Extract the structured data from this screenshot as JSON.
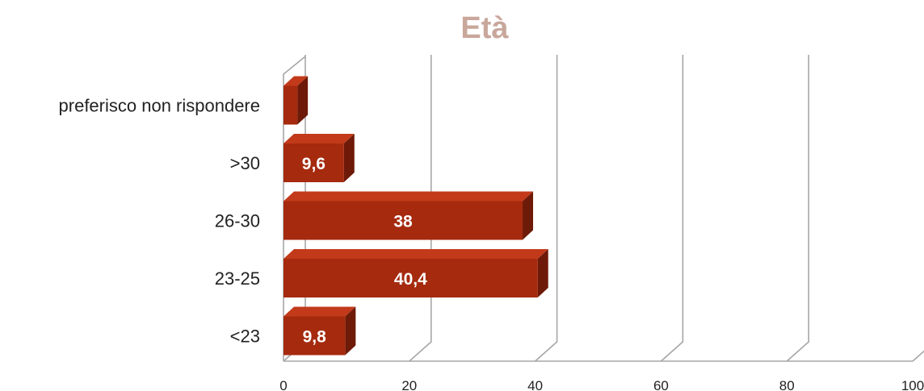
{
  "chart_data": {
    "type": "bar",
    "orientation": "horizontal",
    "title": "Età",
    "categories": [
      "preferisco non rispondere",
      ">30",
      "26-30",
      "23-25",
      "<23"
    ],
    "series": [
      {
        "values": [
          2.2,
          9.6,
          38,
          40.4,
          9.8
        ]
      }
    ],
    "data_labels": [
      "",
      "9,6",
      "38",
      "40,4",
      "9,8"
    ],
    "xlim": [
      0,
      100
    ],
    "x_ticks": [
      "0",
      "20",
      "40",
      "60",
      "80",
      "100"
    ],
    "grid": true,
    "legend": "none",
    "colors": {
      "bar_front": "#a52a0e",
      "bar_top": "#c23a1a",
      "bar_side": "#6e1a08",
      "grid": "#a6a6a6",
      "title": "#c9a79b"
    }
  }
}
